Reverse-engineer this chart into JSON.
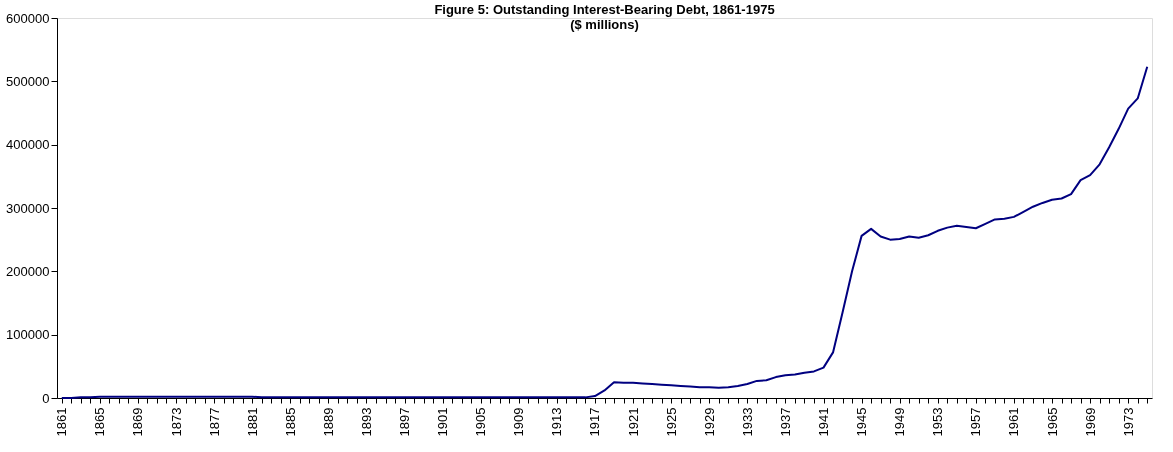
{
  "chart_data": {
    "type": "line",
    "title": "Figure 5: Outstanding Interest-Bearing Debt, 1861-1975\n($ millions)",
    "categories": [
      "1861",
      null,
      null,
      null,
      "1865",
      null,
      null,
      null,
      "1869",
      null,
      null,
      null,
      "1873",
      null,
      null,
      null,
      "1877",
      null,
      null,
      null,
      "1881",
      null,
      null,
      null,
      "1885",
      null,
      null,
      null,
      "1889",
      null,
      null,
      null,
      "1893",
      null,
      null,
      null,
      "1897",
      null,
      null,
      null,
      "1901",
      null,
      null,
      null,
      "1905",
      null,
      null,
      null,
      "1909",
      null,
      null,
      null,
      "1913",
      null,
      null,
      null,
      "1917",
      null,
      null,
      null,
      "1921",
      null,
      null,
      null,
      "1925",
      null,
      null,
      null,
      "1929",
      null,
      null,
      null,
      "1933",
      null,
      null,
      null,
      "1937",
      null,
      null,
      null,
      "1941",
      null,
      null,
      null,
      "1945",
      null,
      null,
      null,
      "1949",
      null,
      null,
      null,
      "1953",
      null,
      null,
      null,
      "1957",
      null,
      null,
      null,
      "1961",
      null,
      null,
      null,
      "1965",
      null,
      null,
      null,
      "1969",
      null,
      null,
      null,
      "1973",
      null,
      null
    ],
    "series": [
      {
        "color": "#000080",
        "values": [
          0,
          0,
          1000,
          1000,
          2000,
          2000,
          2000,
          2000,
          2000,
          2000,
          2000,
          2000,
          2000,
          2000,
          2000,
          2000,
          2000,
          2000,
          2000,
          2000,
          2000,
          1000,
          1000,
          1000,
          1000,
          1000,
          1000,
          1000,
          1000,
          1000,
          1000,
          1000,
          1000,
          1000,
          1000,
          1000,
          1000,
          1000,
          1000,
          1000,
          1000,
          1000,
          1000,
          1000,
          1000,
          1000,
          1000,
          1000,
          1000,
          1000,
          1000,
          1000,
          1000,
          1000,
          1000,
          1000,
          3000,
          12000,
          25000,
          24000,
          24000,
          23000,
          22000,
          21000,
          20000,
          19000,
          18000,
          17000,
          17000,
          16000,
          17000,
          19000,
          22000,
          27000,
          28000,
          33000,
          36000,
          37000,
          40000,
          42000,
          48000,
          72000,
          135000,
          200000,
          256000,
          267000,
          255000,
          250000,
          251000,
          255000,
          253000,
          257000,
          264000,
          269000,
          272000,
          270000,
          268000,
          275000,
          282000,
          283000,
          286000,
          294000,
          302000,
          308000,
          313000,
          315000,
          322000,
          344000,
          352000,
          369000,
          396000,
          425000,
          457000,
          473000,
          523000
        ]
      }
    ],
    "ylim": [
      0,
      600000
    ],
    "yticks": [
      0,
      100000,
      200000,
      300000,
      400000,
      500000,
      600000
    ],
    "grid": false,
    "marker": "none",
    "line_style": "solid"
  }
}
